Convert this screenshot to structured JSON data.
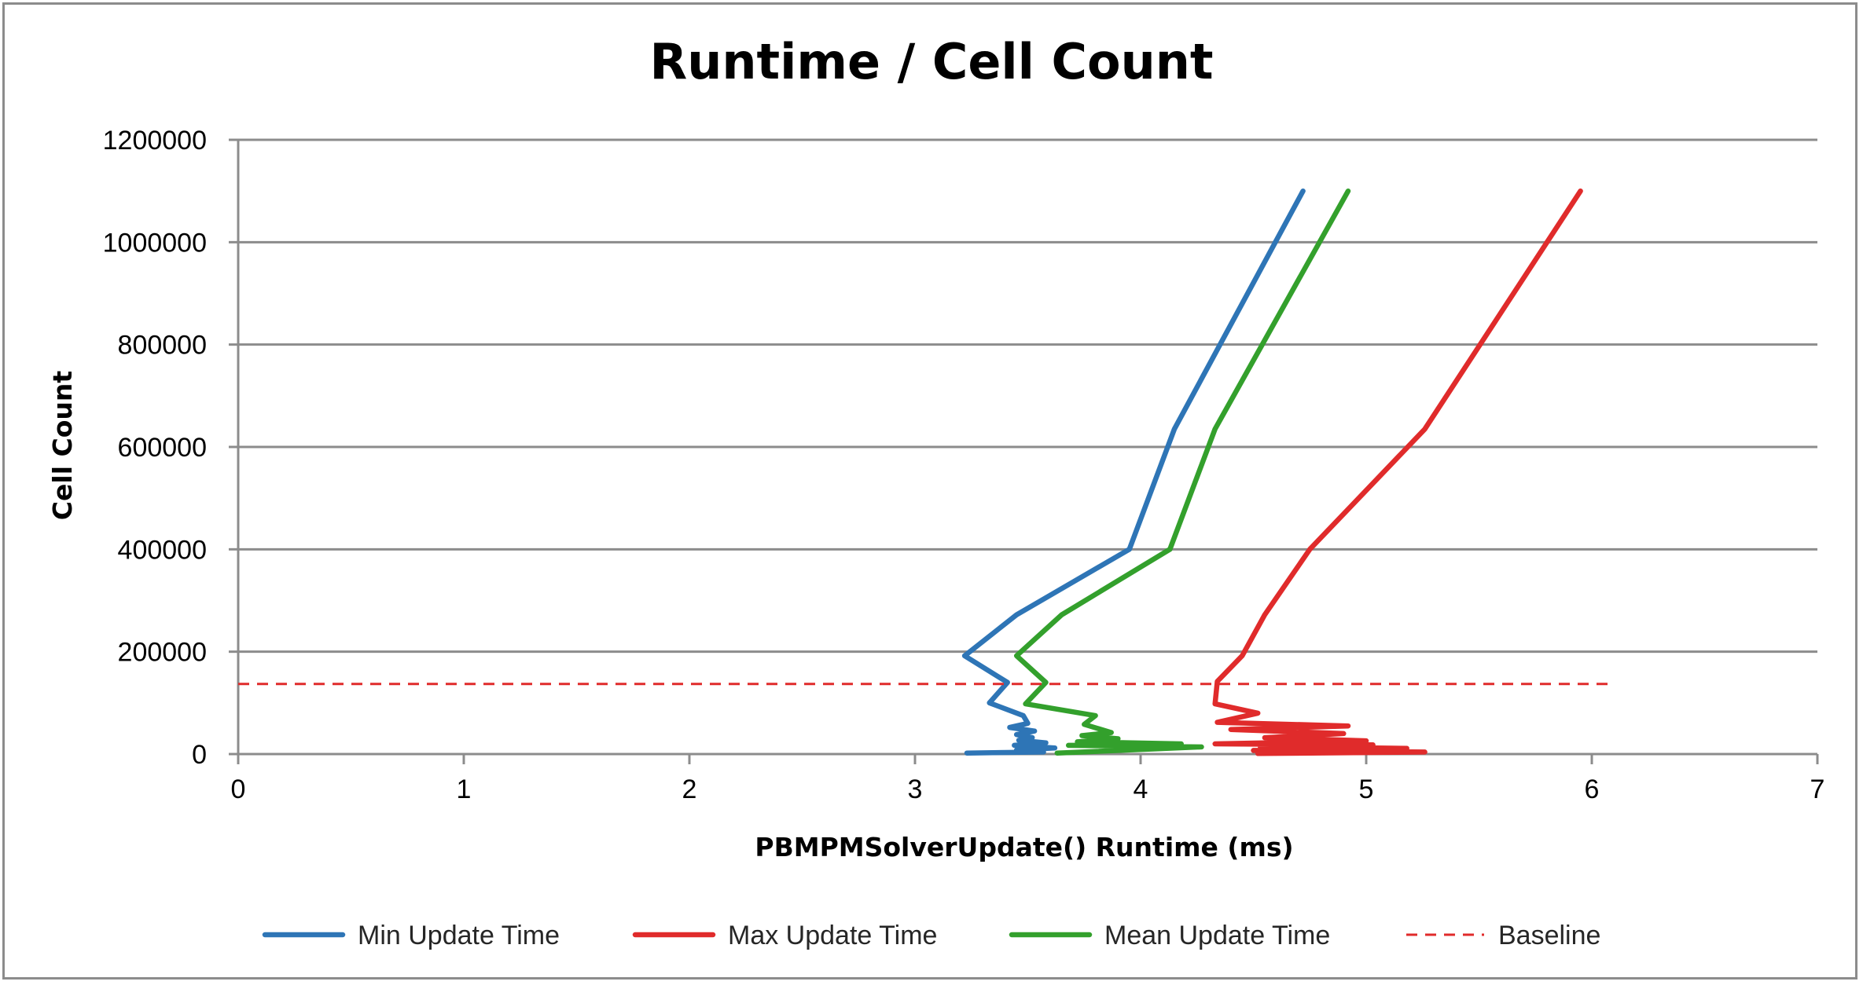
{
  "chart_data": {
    "type": "line",
    "title": "Runtime / Cell Count",
    "xlabel": "PBMPMSolverUpdate() Runtime (ms)",
    "ylabel": "Cell Count",
    "xlim": [
      0,
      7
    ],
    "ylim": [
      0,
      1200000
    ],
    "x_ticks": [
      "0",
      "1",
      "2",
      "3",
      "4",
      "5",
      "6",
      "7"
    ],
    "y_ticks": [
      "0",
      "200000",
      "400000",
      "600000",
      "800000",
      "1000000",
      "1200000"
    ],
    "grid": "horizontal",
    "legend_position": "bottom",
    "series": [
      {
        "name": "Min Update Time",
        "color": "#2e75b6",
        "points": [
          [
            3.23,
            2000
          ],
          [
            3.57,
            4000
          ],
          [
            3.45,
            8000
          ],
          [
            3.62,
            12000
          ],
          [
            3.44,
            17000
          ],
          [
            3.58,
            22000
          ],
          [
            3.46,
            27000
          ],
          [
            3.52,
            32000
          ],
          [
            3.45,
            38000
          ],
          [
            3.53,
            45000
          ],
          [
            3.42,
            52000
          ],
          [
            3.5,
            60000
          ],
          [
            3.48,
            75000
          ],
          [
            3.33,
            100000
          ],
          [
            3.41,
            140000
          ],
          [
            3.22,
            192000
          ],
          [
            3.45,
            272000
          ],
          [
            3.95,
            400000
          ],
          [
            4.15,
            635000
          ],
          [
            4.72,
            1100000
          ]
        ]
      },
      {
        "name": "Max Update Time",
        "color": "#e02b2b",
        "points": [
          [
            4.52,
            1000
          ],
          [
            5.26,
            4000
          ],
          [
            4.5,
            7000
          ],
          [
            5.18,
            11000
          ],
          [
            4.53,
            15000
          ],
          [
            5.03,
            18000
          ],
          [
            4.33,
            20000
          ],
          [
            5.0,
            26000
          ],
          [
            4.55,
            32000
          ],
          [
            4.9,
            40000
          ],
          [
            4.4,
            48000
          ],
          [
            4.92,
            55000
          ],
          [
            4.34,
            62000
          ],
          [
            4.52,
            80000
          ],
          [
            4.33,
            98000
          ],
          [
            4.34,
            142000
          ],
          [
            4.45,
            192000
          ],
          [
            4.55,
            272000
          ],
          [
            4.75,
            400000
          ],
          [
            5.26,
            635000
          ],
          [
            5.95,
            1100000
          ]
        ]
      },
      {
        "name": "Mean Update Time",
        "color": "#33a02c",
        "points": [
          [
            3.63,
            2000
          ],
          [
            4.27,
            14000
          ],
          [
            3.68,
            17000
          ],
          [
            4.18,
            20000
          ],
          [
            3.72,
            24000
          ],
          [
            3.9,
            30000
          ],
          [
            3.74,
            36000
          ],
          [
            3.87,
            42000
          ],
          [
            3.75,
            58000
          ],
          [
            3.8,
            75000
          ],
          [
            3.49,
            98000
          ],
          [
            3.58,
            140000
          ],
          [
            3.45,
            192000
          ],
          [
            3.65,
            272000
          ],
          [
            4.13,
            400000
          ],
          [
            4.33,
            635000
          ],
          [
            4.92,
            1100000
          ]
        ]
      },
      {
        "name": "Baseline",
        "color": "#e02b2b",
        "dashed": true,
        "points": [
          [
            0,
            137000
          ],
          [
            6.1,
            137000
          ]
        ]
      }
    ]
  }
}
